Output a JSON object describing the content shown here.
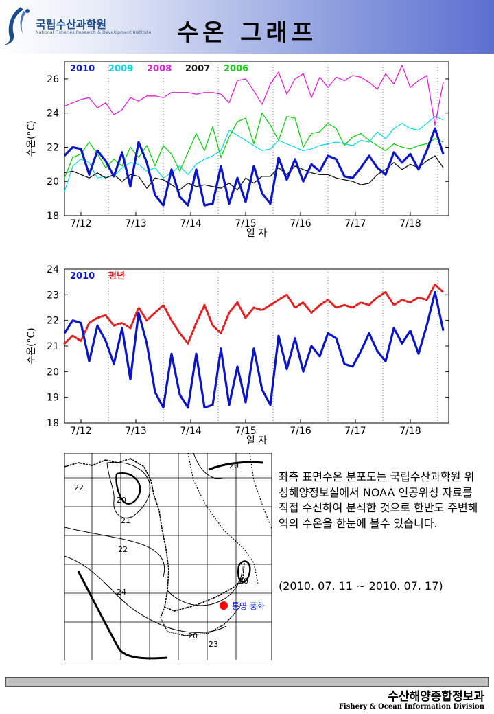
{
  "header": {
    "institute_name": "국립수산과학원",
    "institute_subtitle": "National Fisheries Research & Development Institute",
    "page_title": "수온 그래프"
  },
  "chart_data": [
    {
      "type": "line",
      "ylabel": "수온(°C)",
      "xlabel": "일 자",
      "ylim": [
        18,
        27
      ],
      "yticks": [
        18,
        20,
        22,
        24,
        26
      ],
      "xlim": [
        11.7,
        18.7
      ],
      "x_day_ticks": [
        12,
        13,
        14,
        15,
        16,
        17,
        18
      ],
      "categories": [
        "7/12",
        "7/13",
        "7/14",
        "7/15",
        "7/16",
        "7/17",
        "7/18"
      ],
      "grid": "vertical dotted at day boundaries",
      "series": [
        {
          "name": "2010",
          "color": "#0a14c8",
          "width": 3.2,
          "x": [
            11.7,
            11.85,
            12.0,
            12.15,
            12.3,
            12.45,
            12.6,
            12.75,
            12.9,
            13.05,
            13.2,
            13.35,
            13.5,
            13.65,
            13.8,
            13.95,
            14.1,
            14.25,
            14.4,
            14.55,
            14.7,
            14.85,
            15.0,
            15.15,
            15.3,
            15.45,
            15.6,
            15.75,
            15.9,
            16.05,
            16.2,
            16.35,
            16.5,
            16.65,
            16.8,
            16.95,
            17.1,
            17.25,
            17.4,
            17.55,
            17.7,
            17.85,
            18.0,
            18.15,
            18.3,
            18.45,
            18.6
          ],
          "values": [
            21.5,
            22.0,
            21.9,
            20.4,
            21.8,
            21.2,
            20.3,
            21.7,
            19.7,
            22.3,
            21.1,
            19.2,
            18.6,
            20.7,
            19.1,
            18.6,
            20.7,
            18.6,
            18.7,
            20.9,
            18.7,
            20.2,
            18.8,
            20.9,
            19.3,
            18.7,
            21.4,
            20.1,
            21.3,
            20.0,
            21.0,
            20.6,
            21.5,
            21.3,
            20.3,
            20.2,
            20.8,
            21.5,
            20.8,
            20.4,
            21.7,
            21.1,
            21.6,
            20.7,
            21.8,
            23.1,
            21.6
          ]
        },
        {
          "name": "2009",
          "color": "#00d8e8",
          "width": 1.2,
          "x": [
            11.7,
            11.85,
            12.0,
            12.15,
            12.3,
            12.45,
            12.6,
            12.75,
            12.9,
            13.05,
            13.2,
            13.35,
            13.5,
            13.65,
            13.8,
            13.95,
            14.1,
            14.25,
            14.4,
            14.55,
            14.7,
            14.85,
            15.0,
            15.15,
            15.3,
            15.45,
            15.6,
            15.75,
            15.9,
            16.05,
            16.2,
            16.35,
            16.5,
            16.65,
            16.8,
            16.95,
            17.1,
            17.25,
            17.4,
            17.55,
            17.7,
            17.85,
            18.0,
            18.15,
            18.3,
            18.45,
            18.6
          ],
          "values": [
            19.4,
            20.9,
            21.3,
            21.1,
            20.2,
            20.3,
            20.3,
            20.8,
            21.1,
            21.0,
            20.6,
            20.8,
            20.2,
            20.5,
            20.9,
            20.4,
            21.0,
            21.3,
            21.5,
            21.8,
            23.0,
            22.7,
            22.4,
            22.1,
            21.8,
            21.9,
            22.4,
            22.2,
            22.0,
            21.8,
            21.9,
            22.1,
            22.2,
            22.3,
            22.2,
            22.1,
            22.4,
            22.3,
            22.9,
            22.5,
            23.1,
            23.4,
            23.1,
            23.0,
            23.4,
            23.8,
            23.6
          ]
        },
        {
          "name": "2008",
          "color": "#e020d8",
          "width": 1.3,
          "x": [
            11.7,
            11.85,
            12.0,
            12.15,
            12.3,
            12.45,
            12.6,
            12.75,
            12.9,
            13.05,
            13.2,
            13.35,
            13.5,
            13.65,
            13.8,
            13.95,
            14.1,
            14.25,
            14.4,
            14.55,
            14.7,
            14.85,
            15.0,
            15.15,
            15.3,
            15.45,
            15.6,
            15.75,
            15.9,
            16.05,
            16.2,
            16.35,
            16.5,
            16.65,
            16.8,
            16.95,
            17.1,
            17.25,
            17.4,
            17.55,
            17.7,
            17.85,
            18.0,
            18.15,
            18.3,
            18.45,
            18.6
          ],
          "values": [
            24.4,
            24.6,
            24.8,
            24.9,
            24.3,
            24.6,
            23.9,
            24.2,
            24.9,
            24.7,
            25.0,
            25.0,
            24.9,
            25.2,
            25.2,
            25.2,
            25.1,
            25.2,
            25.2,
            25.1,
            24.6,
            25.9,
            26.0,
            25.3,
            24.5,
            25.7,
            26.4,
            25.1,
            26.0,
            26.3,
            24.9,
            26.1,
            25.5,
            26.1,
            25.9,
            26.2,
            26.1,
            25.8,
            25.4,
            26.3,
            25.7,
            26.8,
            25.5,
            25.9,
            26.2,
            23.3,
            25.8
          ]
        },
        {
          "name": "2007",
          "color": "#101010",
          "width": 1.3,
          "x": [
            11.7,
            11.85,
            12.0,
            12.15,
            12.3,
            12.45,
            12.6,
            12.75,
            12.9,
            13.05,
            13.2,
            13.35,
            13.5,
            13.65,
            13.8,
            13.95,
            14.1,
            14.25,
            14.4,
            14.55,
            14.7,
            14.85,
            15.0,
            15.15,
            15.3,
            15.45,
            15.6,
            15.75,
            15.9,
            16.05,
            16.2,
            16.35,
            16.5,
            16.65,
            16.8,
            16.95,
            17.1,
            17.25,
            17.4,
            17.55,
            17.7,
            17.85,
            18.0,
            18.15,
            18.3,
            18.45,
            18.6
          ],
          "values": [
            20.5,
            20.6,
            20.4,
            20.2,
            20.5,
            20.2,
            20.4,
            20.0,
            20.4,
            20.3,
            19.6,
            20.2,
            20.1,
            19.8,
            19.5,
            19.9,
            19.7,
            19.8,
            19.7,
            19.6,
            19.9,
            19.5,
            20.2,
            19.9,
            20.3,
            20.3,
            20.8,
            20.4,
            20.9,
            20.7,
            20.5,
            20.4,
            20.4,
            20.2,
            20.1,
            20.0,
            19.8,
            19.9,
            20.4,
            20.7,
            21.1,
            20.7,
            21.0,
            20.8,
            21.2,
            21.5,
            20.8
          ]
        },
        {
          "name": "2006",
          "color": "#10d010",
          "width": 1.3,
          "x": [
            11.7,
            11.85,
            12.0,
            12.15,
            12.3,
            12.45,
            12.6,
            12.75,
            12.9,
            13.05,
            13.2,
            13.35,
            13.5,
            13.65,
            13.8,
            13.95,
            14.1,
            14.25,
            14.4,
            14.55,
            14.7,
            14.85,
            15.0,
            15.15,
            15.3,
            15.45,
            15.6,
            15.75,
            15.9,
            16.05,
            16.2,
            16.35,
            16.5,
            16.65,
            16.8,
            16.95,
            17.1,
            17.25,
            17.4,
            17.55,
            17.7,
            17.85,
            18.0,
            18.15,
            18.3,
            18.45,
            18.6
          ],
          "values": [
            20.2,
            21.4,
            21.6,
            22.3,
            21.6,
            20.8,
            21.3,
            20.9,
            22.0,
            21.4,
            22.1,
            20.9,
            22.1,
            21.6,
            20.6,
            21.7,
            22.8,
            21.8,
            23.2,
            21.4,
            22.6,
            23.5,
            23.7,
            22.2,
            24.0,
            23.3,
            22.4,
            23.8,
            23.7,
            22.0,
            22.8,
            22.9,
            23.4,
            23.1,
            22.1,
            22.6,
            22.8,
            22.4,
            22.1,
            21.8,
            22.2,
            22.0,
            21.9,
            22.1,
            22.2,
            22.5,
            22.3
          ]
        }
      ]
    },
    {
      "type": "line",
      "ylabel": "수온(°C)",
      "xlabel": "일 자",
      "ylim": [
        18,
        24
      ],
      "yticks": [
        18,
        19,
        20,
        21,
        22,
        23,
        24
      ],
      "xlim": [
        11.7,
        18.7
      ],
      "x_day_ticks": [
        12,
        13,
        14,
        15,
        16,
        17,
        18
      ],
      "categories": [
        "7/12",
        "7/13",
        "7/14",
        "7/15",
        "7/16",
        "7/17",
        "7/18"
      ],
      "grid": "vertical dotted at day boundaries",
      "series": [
        {
          "name": "2010",
          "color": "#0a14c8",
          "style": "solid",
          "x": [
            11.7,
            11.85,
            12.0,
            12.15,
            12.3,
            12.45,
            12.6,
            12.75,
            12.9,
            13.05,
            13.2,
            13.35,
            13.5,
            13.65,
            13.8,
            13.95,
            14.1,
            14.25,
            14.4,
            14.55,
            14.7,
            14.85,
            15.0,
            15.15,
            15.3,
            15.45,
            15.6,
            15.75,
            15.9,
            16.05,
            16.2,
            16.35,
            16.5,
            16.65,
            16.8,
            16.95,
            17.1,
            17.25,
            17.4,
            17.55,
            17.7,
            17.85,
            18.0,
            18.15,
            18.3,
            18.45,
            18.6
          ],
          "values": [
            21.5,
            22.0,
            21.9,
            20.4,
            21.8,
            21.2,
            20.3,
            21.7,
            19.7,
            22.3,
            21.1,
            19.2,
            18.6,
            20.7,
            19.1,
            18.6,
            20.7,
            18.6,
            18.7,
            20.9,
            18.7,
            20.2,
            18.8,
            20.9,
            19.3,
            18.7,
            21.4,
            20.1,
            21.3,
            20.0,
            21.0,
            20.6,
            21.5,
            21.3,
            20.3,
            20.2,
            20.8,
            21.5,
            20.8,
            20.4,
            21.7,
            21.1,
            21.6,
            20.7,
            21.8,
            23.1,
            21.6
          ]
        },
        {
          "name": "평년",
          "color": "#e02020",
          "style": "dotted",
          "x": [
            11.7,
            11.85,
            12.0,
            12.15,
            12.3,
            12.45,
            12.6,
            12.75,
            12.9,
            13.05,
            13.2,
            13.35,
            13.5,
            13.65,
            13.8,
            13.95,
            14.1,
            14.25,
            14.4,
            14.55,
            14.7,
            14.85,
            15.0,
            15.15,
            15.3,
            15.45,
            15.6,
            15.75,
            15.9,
            16.05,
            16.2,
            16.35,
            16.5,
            16.65,
            16.8,
            16.95,
            17.1,
            17.25,
            17.4,
            17.55,
            17.7,
            17.85,
            18.0,
            18.15,
            18.3,
            18.45,
            18.6
          ],
          "values": [
            21.1,
            21.4,
            21.2,
            21.9,
            22.1,
            22.2,
            21.8,
            21.9,
            21.7,
            22.5,
            22.0,
            22.3,
            22.6,
            22.0,
            21.5,
            21.1,
            21.9,
            22.6,
            21.8,
            21.5,
            22.3,
            22.7,
            22.1,
            22.5,
            22.4,
            22.6,
            22.8,
            23.0,
            22.5,
            22.7,
            22.3,
            22.6,
            22.8,
            22.5,
            22.6,
            22.5,
            22.7,
            22.6,
            22.9,
            23.1,
            22.6,
            22.8,
            22.7,
            22.9,
            22.8,
            23.4,
            23.1
          ]
        }
      ]
    }
  ],
  "map": {
    "contours": [
      "20",
      "21",
      "22",
      "24",
      "20",
      "20",
      "23",
      "20"
    ],
    "station_label": "통영 풍화",
    "station_color": "#ff0000"
  },
  "description": {
    "text": "좌측 표면수온 분포도는 국립수산과학원 위성해양정보실에서 NOAA 인공위성 자료를 직접 수신하여 분석한 것으로  한반도 주변해역의 수온을 한눈에 볼수 있습니다.",
    "period": "(2010. 07. 11 ~ 2010. 07. 17)"
  },
  "footer": {
    "division_kr": "수산해양종합정보과",
    "division_en": "Fishery & Ocean Information Division"
  }
}
